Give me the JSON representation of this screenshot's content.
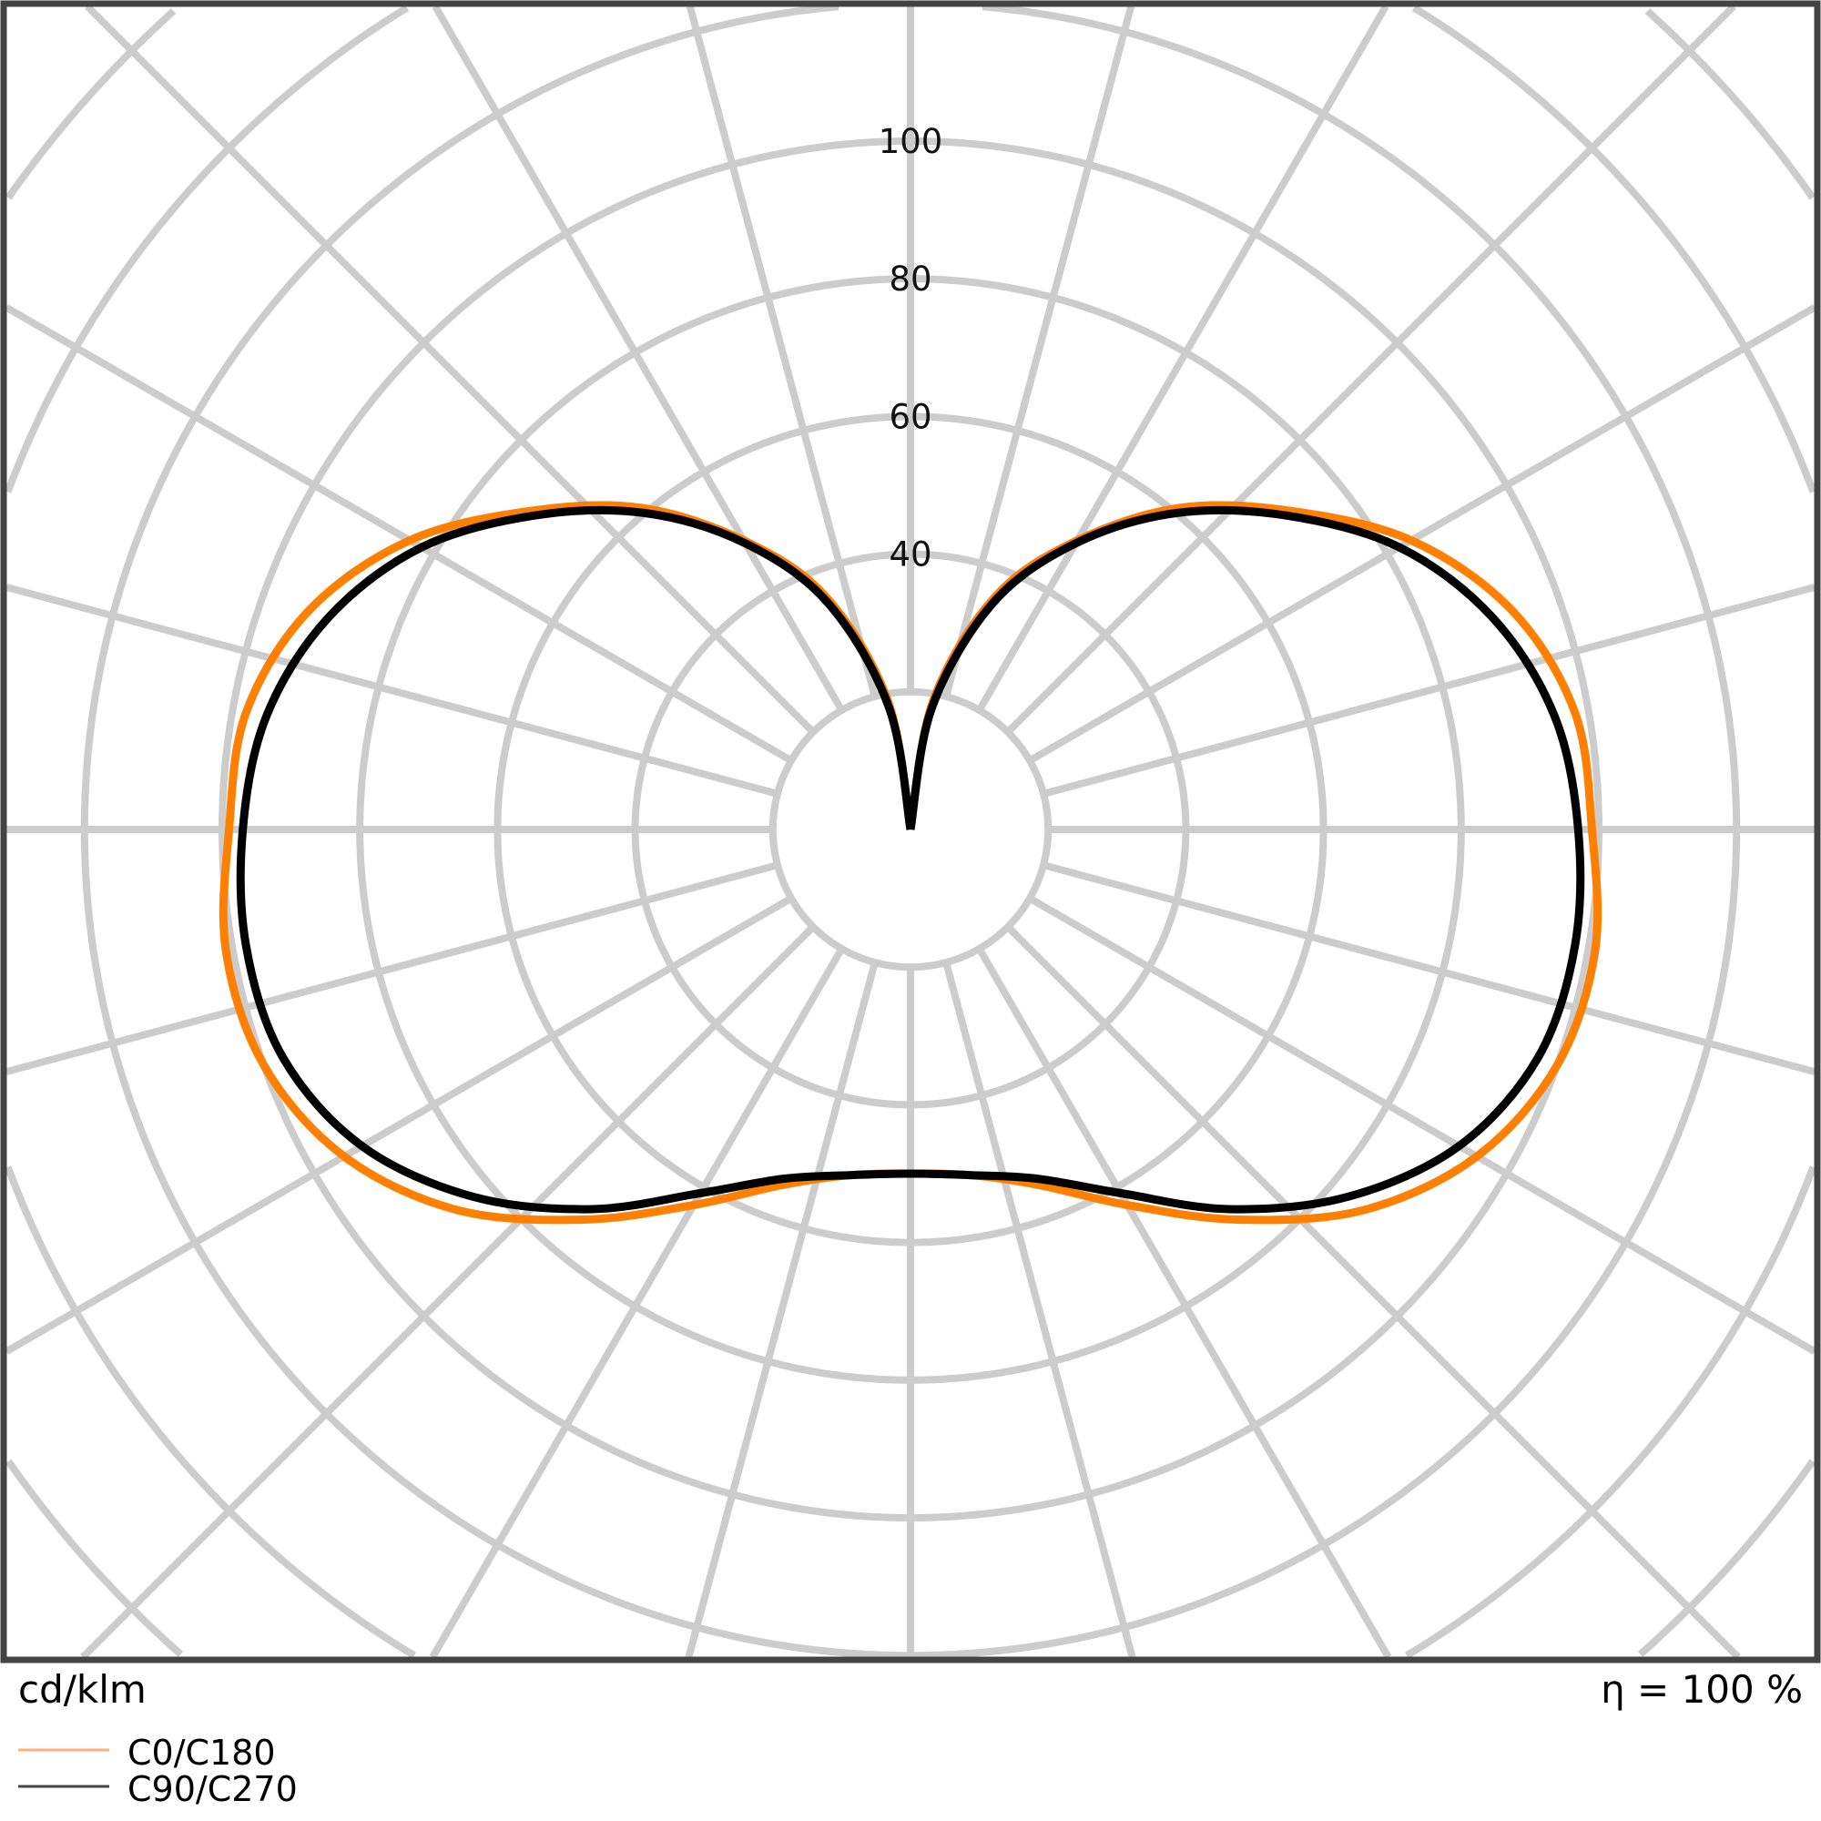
{
  "chart_data": {
    "type": "polar-line",
    "unit_label": "cd/klm",
    "efficiency_label": "η = 100 %",
    "radial_ticks": [
      40,
      60,
      80,
      100
    ],
    "radial_grid_step": 20,
    "angular_grid_step_deg": 15,
    "grid": true,
    "legend_placement": "bottom-left",
    "angles_deg": [
      0,
      10,
      20,
      30,
      40,
      50,
      60,
      70,
      80,
      90,
      100,
      110,
      120,
      130,
      140,
      150,
      160,
      170,
      180
    ],
    "series": [
      {
        "name": "C0/C180",
        "color": "#ff8000",
        "values": [
          50,
          51,
          55,
          63,
          74,
          86,
          95,
          100,
          101,
          99,
          98,
          93,
          84,
          72,
          61,
          48.5,
          36,
          19,
          0
        ]
      },
      {
        "name": "C90/C270",
        "color": "#000000",
        "values": [
          50,
          51,
          54,
          61,
          72,
          83,
          92,
          97,
          98,
          97,
          95,
          90,
          82,
          71,
          60,
          48,
          35,
          18,
          0
        ]
      }
    ]
  }
}
